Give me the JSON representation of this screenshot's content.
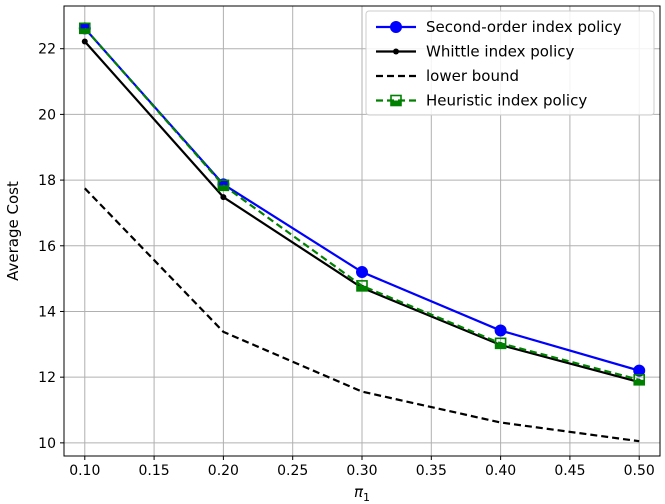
{
  "chart_data": {
    "type": "line",
    "title": "",
    "xlabel": "π",
    "xlabel_subscript": "1",
    "ylabel": "Average Cost",
    "xlim": [
      0.085,
      0.515
    ],
    "ylim": [
      9.6,
      23.3
    ],
    "xticks": [
      0.1,
      0.15,
      0.2,
      0.25,
      0.3,
      0.35,
      0.4,
      0.45,
      0.5
    ],
    "xtick_labels": [
      "0.10",
      "0.15",
      "0.20",
      "0.25",
      "0.30",
      "0.35",
      "0.40",
      "0.45",
      "0.50"
    ],
    "yticks": [
      10,
      12,
      14,
      16,
      18,
      20,
      22
    ],
    "ytick_labels": [
      "10",
      "12",
      "14",
      "16",
      "18",
      "20",
      "22"
    ],
    "grid": true,
    "legend_position": "top-right",
    "x": [
      0.1,
      0.2,
      0.3,
      0.4,
      0.5
    ],
    "series": [
      {
        "name": "Second-order index policy",
        "values": [
          22.62,
          17.87,
          15.2,
          13.42,
          12.2
        ],
        "color": "#0000ff",
        "dash": "solid",
        "marker": "circle"
      },
      {
        "name": "Whittle index policy",
        "values": [
          22.22,
          17.48,
          14.72,
          12.98,
          11.85
        ],
        "color": "#000000",
        "dash": "solid",
        "marker": "dot"
      },
      {
        "name": "lower bound",
        "values": [
          17.75,
          13.38,
          11.56,
          10.62,
          10.05
        ],
        "color": "#000000",
        "dash": "dashed",
        "marker": "none"
      },
      {
        "name": "Heuristic index policy",
        "values": [
          22.62,
          17.84,
          14.78,
          13.03,
          11.92
        ],
        "color": "#008000",
        "dash": "dashed",
        "marker": "square-half"
      }
    ]
  }
}
